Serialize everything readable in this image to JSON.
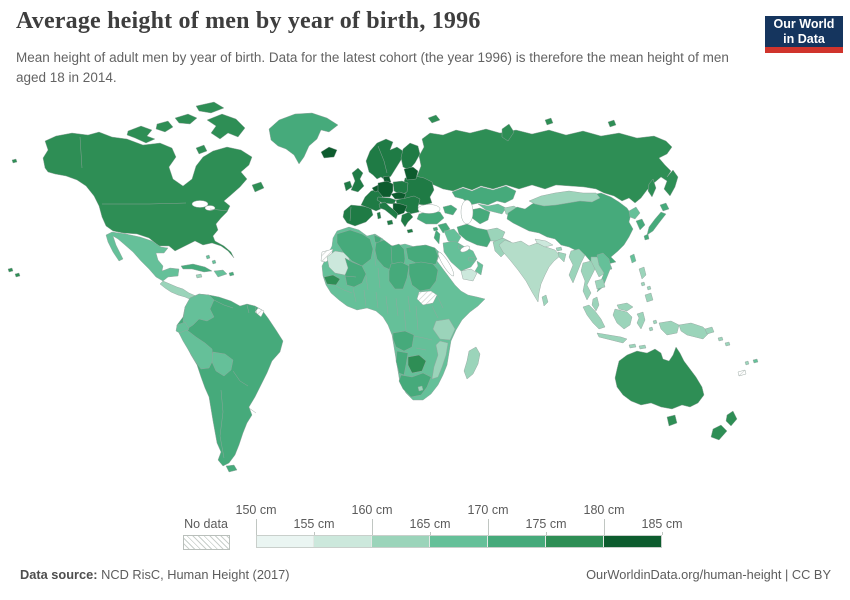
{
  "header": {
    "title": "Average height of men by year of birth, 1996",
    "subtitle": "Mean height of adult men by year of birth. Data for the latest cohort (the year 1996) is therefore the mean height of men aged 18 in 2014.",
    "logo": {
      "line1": "Our World",
      "line2": "in Data"
    }
  },
  "palette": {
    "logo_navy": "#15355e",
    "logo_red": "#d0342c",
    "map_stroke": "#96a59f",
    "europe_dark_green": "#1f7b45",
    "india_pale": "#b4ddc9",
    "hatch_gray": "#c9cfcb"
  },
  "legend": {
    "no_data_label": "No data",
    "tick_labels": [
      "150 cm",
      "155 cm",
      "160 cm",
      "165 cm",
      "170 cm",
      "175 cm",
      "180 cm",
      "185 cm"
    ],
    "bins": [
      {
        "range": "150-155 cm",
        "color": "#eaf5f2"
      },
      {
        "range": "155-160 cm",
        "color": "#cce8dc"
      },
      {
        "range": "160-165 cm",
        "color": "#9bd4ba"
      },
      {
        "range": "165-170 cm",
        "color": "#65c099"
      },
      {
        "range": "170-175 cm",
        "color": "#46aa7b"
      },
      {
        "range": "175-180 cm",
        "color": "#2e8e55"
      },
      {
        "range": "180-185 cm",
        "color": "#0d5c2e"
      }
    ]
  },
  "footer": {
    "datasource_label": "Data source:",
    "datasource_value": " NCD RisC, Human Height (2017)",
    "link": "OurWorldinData.org/human-height | CC BY"
  },
  "chart_data": {
    "type": "heatmap",
    "map_type": "world-choropleth",
    "title": "Average height of men by year of birth, 1996",
    "unit": "cm",
    "value_range": [
      150,
      185
    ],
    "bins": [
      "150-155",
      "155-160",
      "160-165",
      "165-170",
      "170-175",
      "175-180",
      "180-185"
    ],
    "legend_position": "bottom",
    "regions_by_bin": {
      "180-185 cm": [
        "Iceland",
        "Netherlands",
        "Belgium",
        "Denmark",
        "Germany",
        "Czechia",
        "Slovakia",
        "Estonia",
        "Latvia",
        "Lithuania",
        "Croatia",
        "Bosnia and Herzegovina",
        "Serbia",
        "Montenegro"
      ],
      "175-180 cm": [
        "United States",
        "Canada",
        "Russia",
        "Norway",
        "Sweden",
        "Finland",
        "Poland",
        "Ukraine",
        "Belarus",
        "France",
        "United Kingdom",
        "Ireland",
        "Spain",
        "Portugal",
        "Italy",
        "Greece",
        "Austria",
        "Switzerland",
        "Hungary",
        "Romania",
        "Bulgaria",
        "Australia",
        "New Zealand",
        "Senegal",
        "Botswana"
      ],
      "170-175 cm": [
        "Greenland",
        "Cuba",
        "Brazil",
        "Argentina",
        "Chile",
        "Venezuela",
        "Paraguay",
        "Uruguay",
        "Turkey",
        "Georgia",
        "Azerbaijan",
        "Iran",
        "Syria",
        "Lebanon",
        "Algeria",
        "Tunisia",
        "Libya",
        "Egypt",
        "Mali",
        "Chad",
        "Sudan",
        "Angola",
        "Namibia",
        "South Africa",
        "Kazakhstan",
        "Turkmenistan",
        "China",
        "Japan",
        "South Korea"
      ],
      "165-170 cm": [
        "Mexico",
        "Colombia",
        "Ecuador",
        "Peru",
        "Bolivia",
        "Haiti",
        "Dominican Republic",
        "Panama",
        "Costa Rica",
        "Morocco",
        "Niger",
        "Nigeria",
        "Ghana",
        "Ethiopia",
        "Somalia",
        "Kenya",
        "DR Congo",
        "Zambia",
        "Zimbabwe",
        "Saudi Arabia",
        "Iraq",
        "Oman",
        "Uzbekistan",
        "Vietnam",
        "North Korea",
        "Fiji"
      ],
      "160-165 cm": [
        "Guatemala",
        "Honduras",
        "Nicaragua",
        "Tanzania",
        "Mozambique",
        "Malawi",
        "Madagascar",
        "Lesotho",
        "Afghanistan",
        "Kyrgyzstan",
        "Tajikistan",
        "Pakistan",
        "India",
        "Bangladesh",
        "Sri Lanka",
        "Myanmar",
        "Thailand",
        "Laos",
        "Cambodia",
        "Malaysia",
        "Philippines",
        "Indonesia",
        "Mongolia",
        "Papua New Guinea"
      ],
      "155-160 cm": [
        "Yemen",
        "Mauritania",
        "Nepal"
      ],
      "150-155 cm": []
    },
    "no_data_regions": [
      "Western Sahara",
      "South Sudan",
      "French Guiana",
      "New Caledonia"
    ]
  }
}
